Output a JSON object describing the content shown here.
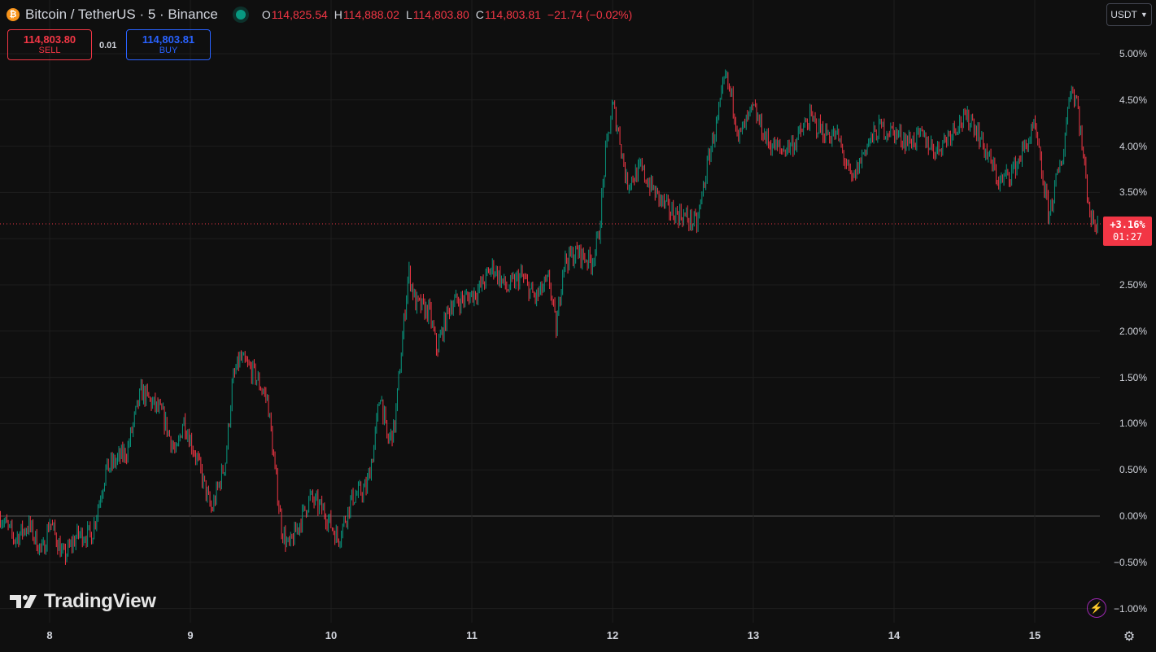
{
  "header": {
    "coin_icon": "bitcoin-icon",
    "symbol": "Bitcoin / TetherUS · 5 · Binance",
    "status": "market-open",
    "ohlc": {
      "o_label": "O",
      "o": "114,825.54",
      "h_label": "H",
      "h": "114,888.02",
      "l_label": "L",
      "l": "114,803.80",
      "c_label": "C",
      "c": "114,803.81",
      "change": "−21.74 (−0.02%)"
    }
  },
  "trade": {
    "sell_price": "114,803.80",
    "sell_label": "SELL",
    "spread": "0.01",
    "buy_price": "114,803.81",
    "buy_label": "BUY"
  },
  "currency": {
    "selected": "USDT"
  },
  "last_tag": {
    "pct": "+3.16%",
    "timer": "01:27"
  },
  "logo": {
    "text": "TradingView"
  },
  "icons": {
    "lightning": "lightning-icon",
    "settings": "settings-icon"
  },
  "colors": {
    "background": "#0f0f0f",
    "up": "#089981",
    "down": "#f23645",
    "buy": "#2962ff",
    "grid": "#1e1e1e"
  },
  "chart_data": {
    "type": "candlestick",
    "y_axis_unit": "%",
    "y_ticks": [
      "5.00%",
      "4.50%",
      "4.00%",
      "3.50%",
      "3.00%",
      "2.50%",
      "2.00%",
      "1.50%",
      "1.00%",
      "0.50%",
      "0.00%",
      "−0.50%",
      "−1.00%"
    ],
    "y_tick_values": [
      5.0,
      4.5,
      4.0,
      3.5,
      3.0,
      2.5,
      2.0,
      1.5,
      1.0,
      0.5,
      0.0,
      -0.5,
      -1.0
    ],
    "x_ticks": [
      "8",
      "9",
      "10",
      "11",
      "12",
      "13",
      "14",
      "15"
    ],
    "ylim": [
      -1.0,
      5.0
    ],
    "last_value": 3.16,
    "path": [
      [
        7.65,
        0.0
      ],
      [
        7.75,
        -0.25
      ],
      [
        7.85,
        -0.1
      ],
      [
        7.95,
        -0.4
      ],
      [
        8.0,
        -0.05
      ],
      [
        8.1,
        -0.45
      ],
      [
        8.2,
        -0.2
      ],
      [
        8.3,
        -0.2
      ],
      [
        8.4,
        0.5
      ],
      [
        8.55,
        0.7
      ],
      [
        8.65,
        1.35
      ],
      [
        8.8,
        1.1
      ],
      [
        8.9,
        0.65
      ],
      [
        8.95,
        1.05
      ],
      [
        9.05,
        0.6
      ],
      [
        9.15,
        0.05
      ],
      [
        9.25,
        0.6
      ],
      [
        9.3,
        1.45
      ],
      [
        9.35,
        1.7
      ],
      [
        9.45,
        1.55
      ],
      [
        9.55,
        1.25
      ],
      [
        9.6,
        0.5
      ],
      [
        9.65,
        -0.15
      ],
      [
        9.7,
        -0.35
      ],
      [
        9.85,
        0.2
      ],
      [
        9.95,
        0.05
      ],
      [
        10.05,
        -0.25
      ],
      [
        10.15,
        0.2
      ],
      [
        10.25,
        0.3
      ],
      [
        10.3,
        0.7
      ],
      [
        10.35,
        1.35
      ],
      [
        10.4,
        0.8
      ],
      [
        10.45,
        0.95
      ],
      [
        10.5,
        1.8
      ],
      [
        10.55,
        2.65
      ],
      [
        10.6,
        2.3
      ],
      [
        10.7,
        2.2
      ],
      [
        10.75,
        1.8
      ],
      [
        10.85,
        2.3
      ],
      [
        10.95,
        2.35
      ],
      [
        11.05,
        2.45
      ],
      [
        11.15,
        2.7
      ],
      [
        11.25,
        2.45
      ],
      [
        11.35,
        2.6
      ],
      [
        11.45,
        2.35
      ],
      [
        11.55,
        2.55
      ],
      [
        11.6,
        2.0
      ],
      [
        11.65,
        2.75
      ],
      [
        11.75,
        2.85
      ],
      [
        11.85,
        2.75
      ],
      [
        11.9,
        3.0
      ],
      [
        11.95,
        3.9
      ],
      [
        12.0,
        4.45
      ],
      [
        12.05,
        4.1
      ],
      [
        12.1,
        3.6
      ],
      [
        12.2,
        3.75
      ],
      [
        12.3,
        3.5
      ],
      [
        12.4,
        3.3
      ],
      [
        12.5,
        3.25
      ],
      [
        12.6,
        3.15
      ],
      [
        12.65,
        3.6
      ],
      [
        12.7,
        4.0
      ],
      [
        12.75,
        4.3
      ],
      [
        12.8,
        4.75
      ],
      [
        12.85,
        4.5
      ],
      [
        12.9,
        4.1
      ],
      [
        13.0,
        4.4
      ],
      [
        13.1,
        4.05
      ],
      [
        13.2,
        3.95
      ],
      [
        13.3,
        4.05
      ],
      [
        13.4,
        4.3
      ],
      [
        13.5,
        4.15
      ],
      [
        13.6,
        4.1
      ],
      [
        13.7,
        3.6
      ],
      [
        13.8,
        4.0
      ],
      [
        13.9,
        4.2
      ],
      [
        14.0,
        4.15
      ],
      [
        14.1,
        4.05
      ],
      [
        14.2,
        4.1
      ],
      [
        14.3,
        3.95
      ],
      [
        14.45,
        4.25
      ],
      [
        14.55,
        4.3
      ],
      [
        14.65,
        3.95
      ],
      [
        14.75,
        3.6
      ],
      [
        14.85,
        3.75
      ],
      [
        14.95,
        4.05
      ],
      [
        15.0,
        4.2
      ],
      [
        15.05,
        3.7
      ],
      [
        15.1,
        3.25
      ],
      [
        15.15,
        3.6
      ],
      [
        15.2,
        3.9
      ],
      [
        15.25,
        4.65
      ],
      [
        15.3,
        4.5
      ],
      [
        15.35,
        3.8
      ],
      [
        15.4,
        3.2
      ],
      [
        15.45,
        3.16
      ]
    ]
  }
}
